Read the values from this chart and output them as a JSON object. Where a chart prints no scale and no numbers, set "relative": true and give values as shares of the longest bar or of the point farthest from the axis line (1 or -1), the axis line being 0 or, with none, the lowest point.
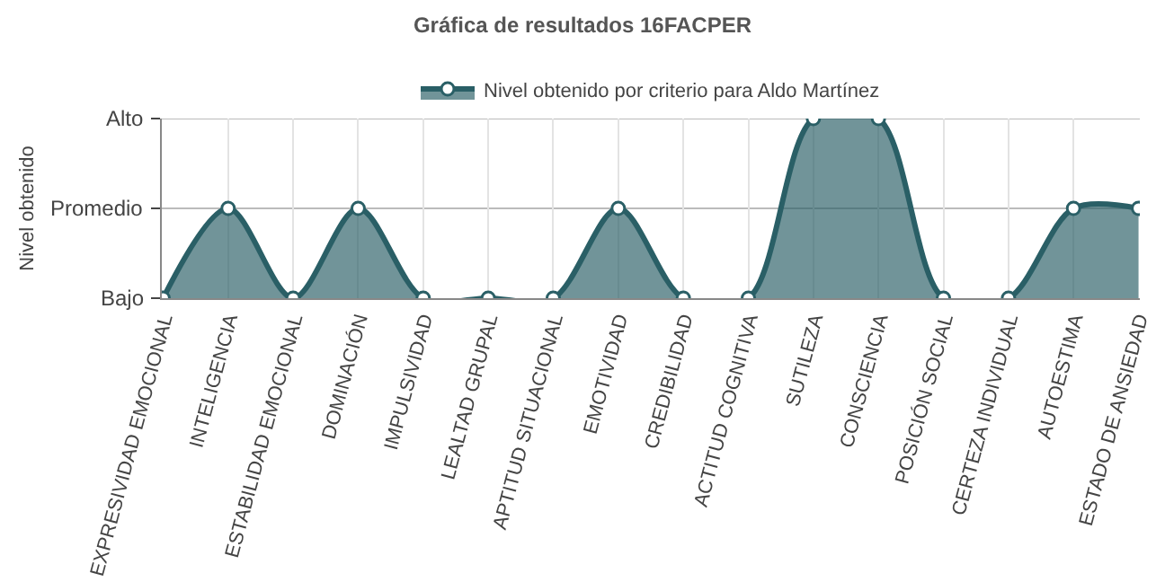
{
  "chart_data": {
    "type": "area",
    "title": "Gráfica de resultados 16FACPER",
    "ylabel": "Nivel obtenido",
    "categories": [
      "EXPRESIVIDAD EMOCIONAL",
      "INTELIGENCIA",
      "ESTABILIDAD EMOCIONAL",
      "DOMINACIÓN",
      "IMPULSIVIDAD",
      "LEALTAD GRUPAL",
      "APTITUD SITUACIONAL",
      "EMOTIVIDAD",
      "CREDIBILIDAD",
      "ACTITUD COGNITIVA",
      "SUTILEZA",
      "CONSCIENCIA",
      "POSICIÓN SOCIAL",
      "CERTEZA INDIVIDUAL",
      "AUTOESTIMA",
      "ESTADO DE ANSIEDAD"
    ],
    "series": [
      {
        "name": "Nivel obtenido por criterio para Aldo Martínez",
        "color": "#2a5f66",
        "values": [
          0,
          0.5,
          0,
          0.5,
          0,
          0,
          0,
          0.5,
          0,
          0,
          1,
          1,
          0,
          0,
          0.5,
          0.5
        ]
      }
    ],
    "relative": true,
    "annotations": [
      "Bajo",
      "Promedio",
      "Alto"
    ],
    "ref_lines": [
      {
        "axis": "y",
        "value": 0.5,
        "color": "#bbbbbb"
      },
      {
        "axis": "y",
        "value": 1,
        "color": "#bbbbbb"
      }
    ],
    "grid": "x",
    "legend": "top",
    "marker": "circle",
    "line_style": "solid"
  }
}
